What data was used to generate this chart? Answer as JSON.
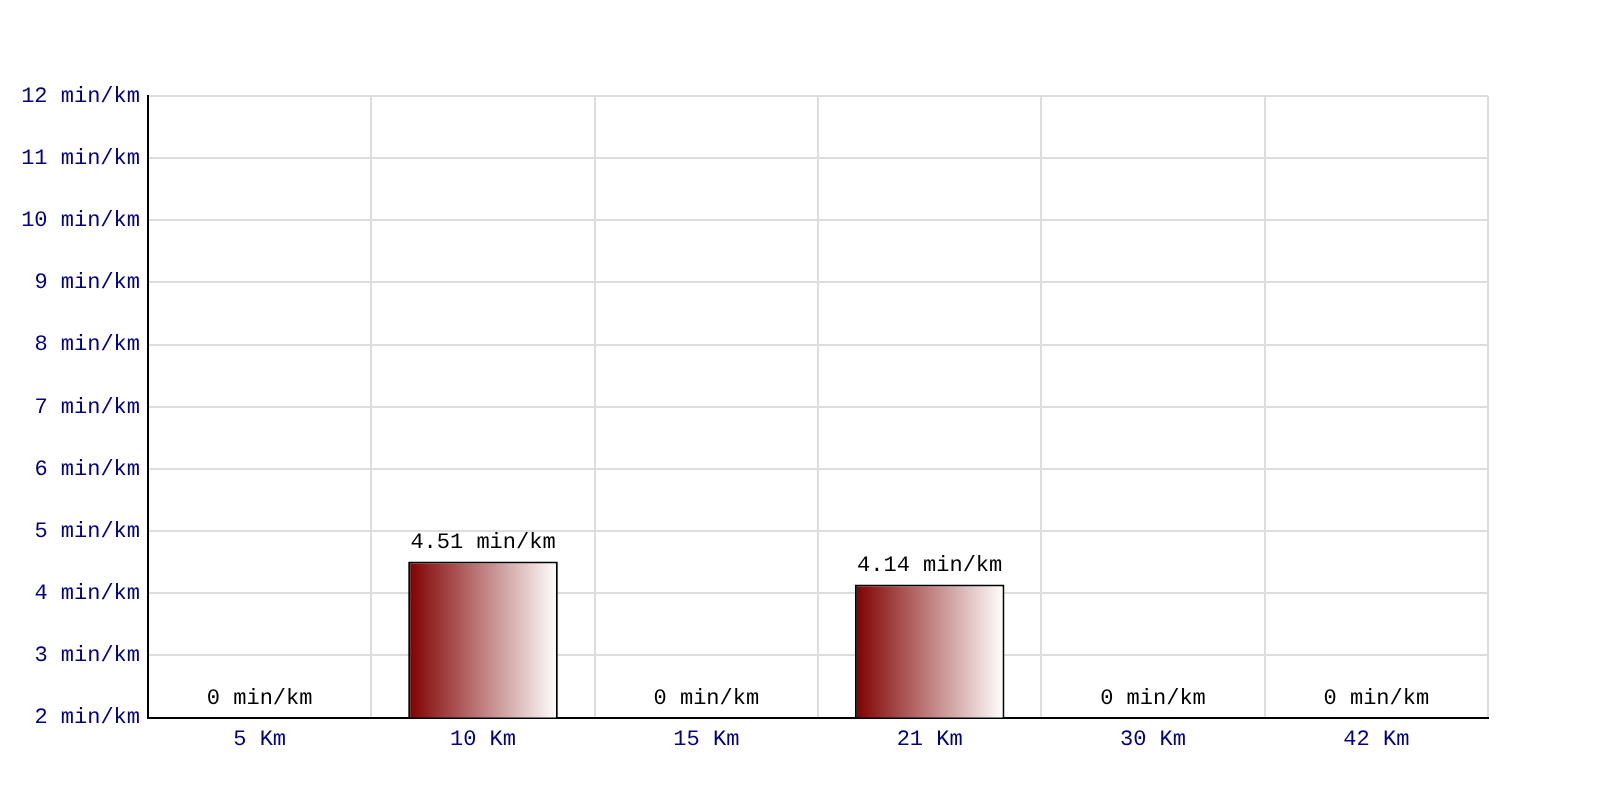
{
  "chart_data": {
    "type": "bar",
    "categories": [
      "5 Km",
      "10 Km",
      "15 Km",
      "21 Km",
      "30 Km",
      "42 Km"
    ],
    "values": [
      null,
      4.51,
      null,
      4.14,
      null,
      null
    ],
    "value_labels": [
      "0 min/km",
      "4.51 min/km",
      "0 min/km",
      "4.14 min/km",
      "0 min/km",
      "0 min/km"
    ],
    "color": "#800000",
    "ylim": [
      2,
      12
    ],
    "yticks": [
      {
        "value": 2,
        "label": "2 min/km"
      },
      {
        "value": 3,
        "label": "3 min/km"
      },
      {
        "value": 4,
        "label": "4 min/km"
      },
      {
        "value": 5,
        "label": "5 min/km"
      },
      {
        "value": 6,
        "label": "6 min/km"
      },
      {
        "value": 7,
        "label": "7 min/km"
      },
      {
        "value": 8,
        "label": "8 min/km"
      },
      {
        "value": 9,
        "label": "9 min/km"
      },
      {
        "value": 10,
        "label": "10 min/km"
      },
      {
        "value": 11,
        "label": "11 min/km"
      },
      {
        "value": 12,
        "label": "12 min/km"
      }
    ],
    "grid": true,
    "legend": false
  }
}
